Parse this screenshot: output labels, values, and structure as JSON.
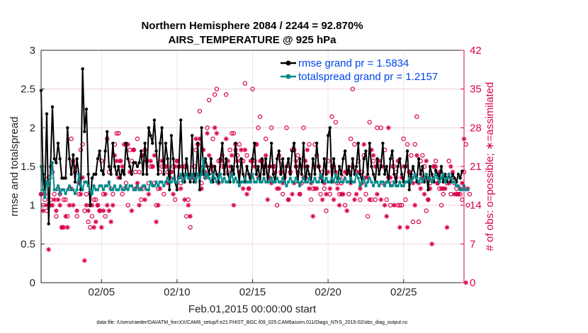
{
  "chart_data": {
    "type": "line",
    "title": "Northern Hemisphere 2084 / 2244 = 92.870%",
    "subtitle": "AIRS_TEMPERATURE @ 925 hPa",
    "xlabel": "Feb.01,2015 00:00:00 start",
    "ylabel": "rmse and totalspread",
    "y2label": "# of obs: o=possible; ∗=assimilated",
    "footer": "data file: /Users/raeder/DAI/ATM_forcXX/CAM6_setup/f.e21.FHIST_BGC.f09_025.CAM6assim.011/Diags_NTrS_2015-02/obs_diag_output.nc",
    "xlim": [
      1.0,
      29.0
    ],
    "ylim": [
      0,
      3
    ],
    "y2lim": [
      0,
      42
    ],
    "xticks": [
      5,
      10,
      15,
      20,
      25
    ],
    "xtick_labels": [
      "02/05",
      "02/10",
      "02/15",
      "02/20",
      "02/25"
    ],
    "yticks": [
      0,
      0.5,
      1,
      1.5,
      2,
      2.5,
      3
    ],
    "ytick_labels": [
      "0",
      "0.5",
      "1",
      "1.5",
      "2",
      "2.5",
      "3"
    ],
    "y2ticks": [
      0,
      7,
      14,
      21,
      28,
      35,
      42
    ],
    "y2tick_labels": [
      "0",
      "7",
      "14",
      "21",
      "28",
      "35",
      "42"
    ],
    "legend": {
      "location": "top-right",
      "entries": [
        "rmse grand pr = 1.5834",
        "totalspread grand pr = 1.2157"
      ]
    },
    "colors": {
      "rmse": "#000000",
      "spread": "#008b8b",
      "obs": "#d9004c",
      "legend_text": "#0046e6",
      "grid": "#e6e6e6"
    },
    "series": [
      {
        "name": "rmse",
        "x_start": 1.0,
        "x_step": 0.125,
        "values": [
          2.48,
          1.4,
          1.2,
          2.18,
          0.76,
          1.5,
          2.27,
          1.6,
          1.55,
          1.8,
          1.6,
          1.35,
          1.35,
          1.35,
          2.0,
          1.6,
          1.4,
          1.65,
          1.3,
          1.6,
          1.4,
          1.2,
          2.76,
          1.95,
          2.24,
          1.4,
          1.0,
          1.35,
          1.4,
          1.4,
          1.6,
          1.7,
          1.45,
          1.4,
          1.7,
          1.95,
          1.5,
          1.4,
          1.8,
          1.5,
          1.4,
          1.5,
          1.35,
          1.45,
          1.4,
          1.8,
          1.6,
          1.5,
          1.4,
          1.55,
          1.55,
          1.5,
          1.55,
          1.7,
          1.4,
          1.8,
          1.4,
          2.0,
          1.9,
          1.8,
          2.1,
          1.7,
          1.4,
          1.8,
          2.0,
          1.4,
          1.8,
          1.6,
          1.2,
          1.9,
          1.6,
          1.3,
          1.2,
          1.5,
          2.1,
          1.4,
          1.3,
          1.6,
          1.4,
          1.3,
          1.9,
          1.3,
          1.4,
          1.8,
          1.2,
          2.0,
          1.4,
          1.6,
          1.5,
          1.4,
          1.6,
          1.3,
          1.5,
          1.4,
          1.3,
          1.6,
          1.8,
          1.4,
          1.6,
          1.4,
          1.3,
          1.5,
          1.4,
          1.8,
          1.5,
          1.3,
          1.6,
          1.4,
          1.3,
          1.5,
          1.4,
          1.3,
          1.6,
          1.8,
          1.4,
          1.5,
          1.3,
          1.6,
          1.4,
          1.6,
          1.3,
          1.5,
          1.8,
          1.4,
          1.3,
          1.6,
          1.7,
          1.4,
          1.6,
          1.3,
          1.5,
          1.6,
          1.4,
          1.7,
          1.8,
          1.5,
          1.3,
          1.6,
          1.4,
          1.8,
          1.3,
          1.5,
          1.4,
          1.3,
          1.6,
          1.4,
          1.8,
          1.5,
          1.4,
          1.3,
          1.6,
          1.4,
          1.9,
          2.0,
          1.3,
          1.6,
          1.4,
          1.3,
          1.5,
          1.4,
          1.6,
          1.7,
          1.4,
          1.5,
          1.3,
          1.6,
          1.4,
          1.5,
          1.8,
          1.4,
          1.3,
          1.6,
          1.7,
          1.4,
          1.8,
          1.5,
          1.4,
          1.3,
          1.6,
          1.4,
          1.5,
          1.8,
          1.4,
          1.5,
          1.3,
          1.6,
          1.7,
          1.4,
          1.3,
          1.5,
          1.6,
          1.4,
          1.3,
          1.5,
          1.7,
          1.2,
          1.4,
          1.5,
          1.4,
          1.3,
          1.6,
          1.4,
          1.5,
          1.3,
          1.4,
          1.2,
          1.5,
          1.4,
          1.3,
          1.45,
          1.4,
          1.35,
          1.5,
          1.3,
          1.4,
          1.3,
          1.4,
          1.3,
          1.4,
          1.35,
          1.3,
          1.4,
          1.35,
          1.44
        ]
      },
      {
        "name": "totalspread",
        "x_start": 1.0,
        "x_step": 0.125,
        "values": [
          1.5,
          1.2,
          1.1,
          1.3,
          1.25,
          1.35,
          1.55,
          1.2,
          1.2,
          1.25,
          1.15,
          1.2,
          1.2,
          1.15,
          1.2,
          1.25,
          1.2,
          1.2,
          1.15,
          1.2,
          1.4,
          1.25,
          1.2,
          1.3,
          1.3,
          1.25,
          1.2,
          1.15,
          1.25,
          1.2,
          1.2,
          1.25,
          1.25,
          1.2,
          1.25,
          1.25,
          1.3,
          1.2,
          1.2,
          1.25,
          1.2,
          1.2,
          1.25,
          1.2,
          1.2,
          1.25,
          1.2,
          1.25,
          1.25,
          1.2,
          1.2,
          1.25,
          1.2,
          1.2,
          1.25,
          1.25,
          1.2,
          1.2,
          1.3,
          1.25,
          1.25,
          1.3,
          1.25,
          1.3,
          1.3,
          1.25,
          1.3,
          1.35,
          1.3,
          1.3,
          1.35,
          1.3,
          1.3,
          1.35,
          1.4,
          1.3,
          1.35,
          1.4,
          1.35,
          1.35,
          1.4,
          1.35,
          1.3,
          1.4,
          1.35,
          1.4,
          1.6,
          1.35,
          1.4,
          1.35,
          1.3,
          1.4,
          1.35,
          1.3,
          1.35,
          1.4,
          1.3,
          1.35,
          1.3,
          1.3,
          1.35,
          1.4,
          1.3,
          1.35,
          1.3,
          1.25,
          1.3,
          1.3,
          1.35,
          1.3,
          1.3,
          1.3,
          1.4,
          1.3,
          1.3,
          1.35,
          1.3,
          1.3,
          1.35,
          1.3,
          1.3,
          1.3,
          1.35,
          1.3,
          1.3,
          1.35,
          1.3,
          1.3,
          1.35,
          1.3,
          1.25,
          1.3,
          1.35,
          1.3,
          1.3,
          1.35,
          1.3,
          1.25,
          1.3,
          1.35,
          1.3,
          1.3,
          1.35,
          1.3,
          1.3,
          1.35,
          1.3,
          1.3,
          1.4,
          1.35,
          1.3,
          1.35,
          1.3,
          1.3,
          1.35,
          1.3,
          1.4,
          1.3,
          1.35,
          1.3,
          1.3,
          1.35,
          1.3,
          1.3,
          1.35,
          1.3,
          1.3,
          1.4,
          1.35,
          1.25,
          1.3,
          1.35,
          1.25,
          1.3,
          1.35,
          1.3,
          1.25,
          1.3,
          1.3,
          1.25,
          1.3,
          1.3,
          1.25,
          1.3,
          1.3,
          1.25,
          1.25,
          1.3,
          1.25,
          1.25,
          1.3,
          1.25,
          1.25,
          1.3,
          1.3,
          1.35,
          1.3,
          1.35,
          1.4,
          1.35,
          1.3,
          1.35,
          1.3,
          1.35,
          1.4,
          1.35,
          1.35,
          1.3,
          1.35,
          1.4,
          1.35,
          1.3,
          1.35,
          1.4,
          1.3,
          1.35,
          1.4,
          1.35,
          1.3,
          1.3,
          1.25,
          1.25,
          1.2,
          1.2,
          1.25,
          1.2,
          1.2
        ]
      }
    ],
    "obs_possible": {
      "marker": "o",
      "x_start": 1.0,
      "x_step": 0.125,
      "values": [
        16,
        14,
        15,
        13,
        19,
        15,
        20,
        16,
        12,
        17,
        16,
        10,
        15,
        15,
        12,
        17,
        26,
        22,
        20,
        12,
        16,
        24,
        25,
        13,
        16,
        11,
        10,
        12,
        15,
        15,
        14,
        13,
        22,
        16,
        12,
        26,
        20,
        17,
        16,
        25,
        27,
        27,
        22,
        16,
        17,
        18,
        14,
        24,
        22,
        24,
        20,
        26,
        20,
        15,
        17,
        24,
        22,
        18,
        21,
        21,
        18,
        14,
        17,
        20,
        21,
        16,
        21,
        20,
        19,
        20,
        21,
        15,
        22,
        21,
        18,
        19,
        21,
        12,
        15,
        10,
        19,
        21,
        24,
        25,
        31,
        18,
        21,
        19,
        28,
        33,
        20,
        26,
        34,
        35,
        22,
        22,
        21,
        21,
        34,
        20,
        24,
        27,
        27,
        25,
        23,
        25,
        22,
        22,
        36,
        23,
        17,
        19,
        35,
        22,
        25,
        28,
        30,
        22,
        21,
        26,
        20,
        21,
        28,
        21,
        21,
        14,
        23,
        22,
        16,
        20,
        28,
        15,
        20,
        24,
        24,
        21,
        23,
        16,
        18,
        28,
        19,
        21,
        25,
        15,
        17,
        25,
        23,
        21,
        16,
        20,
        17,
        13,
        22,
        16,
        30,
        21,
        29,
        18,
        16,
        18,
        19,
        14,
        20,
        16,
        26,
        35,
        25,
        20,
        22,
        15,
        20,
        23,
        16,
        12,
        29,
        15,
        22,
        15,
        28,
        21,
        28,
        18,
        24,
        15,
        19,
        14,
        18,
        21,
        20,
        14,
        14,
        14,
        26,
        15,
        25,
        20,
        23,
        11,
        25,
        30,
        11,
        22,
        23,
        21,
        13,
        15,
        18,
        19,
        21,
        22,
        18,
        17,
        14,
        16,
        19,
        18,
        22,
        16,
        19,
        18,
        17,
        16,
        16,
        15,
        20,
        25,
        14,
        16
      ]
    },
    "obs_assimilated": {
      "marker": "*",
      "x_start": 1.0,
      "x_step": 0.125,
      "values": [
        16,
        13,
        16,
        14,
        6,
        14,
        14,
        15,
        13,
        15,
        14,
        10,
        10,
        12,
        10,
        14,
        17,
        14,
        21,
        13,
        18,
        16,
        19,
        4,
        14,
        13,
        14,
        14,
        10,
        11,
        14,
        13,
        10,
        13,
        16,
        14,
        13,
        11,
        14,
        23,
        22,
        19,
        22,
        21,
        25,
        25,
        25,
        20,
        13,
        24,
        17,
        18,
        14,
        17,
        23,
        15,
        22,
        16,
        22,
        21,
        23,
        11,
        14,
        17,
        22,
        21,
        21,
        18,
        19,
        20,
        16,
        21,
        22,
        19,
        17,
        21,
        15,
        21,
        14,
        12,
        19,
        19,
        26,
        25,
        26,
        17,
        24,
        20,
        27,
        23,
        21,
        21,
        28,
        27,
        18,
        22,
        23,
        21,
        26,
        22,
        21,
        23,
        14,
        24,
        22,
        20,
        24,
        17,
        24,
        16,
        17,
        22,
        22,
        21,
        25,
        19,
        22,
        22,
        21,
        23,
        15,
        19,
        18,
        21,
        20,
        17,
        17,
        20,
        18,
        19,
        21,
        15,
        20,
        16,
        18,
        22,
        20,
        16,
        21,
        19,
        22,
        24,
        17,
        18,
        12,
        17,
        17,
        21,
        19,
        15,
        18,
        16,
        20,
        17,
        21,
        15,
        20,
        17,
        14,
        16,
        16,
        20,
        13,
        20,
        18,
        21,
        15,
        16,
        20,
        17,
        18,
        25,
        19,
        19,
        15,
        24,
        23,
        21,
        16,
        22,
        15,
        21,
        14,
        12,
        28,
        19,
        21,
        14,
        19,
        22,
        10,
        19,
        21,
        21,
        10,
        20,
        19,
        18,
        14,
        23,
        18,
        17,
        19,
        16,
        22,
        15,
        17,
        7,
        21,
        21,
        18,
        20,
        17,
        17,
        17,
        10,
        18,
        21,
        20,
        16,
        16,
        16,
        17,
        18,
        26,
        0,
        17
      ]
    }
  }
}
